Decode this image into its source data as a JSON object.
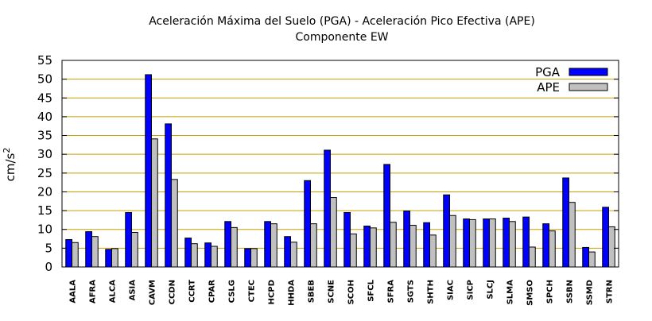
{
  "chart_data": {
    "type": "bar",
    "title": "Aceleración Máxima del Suelo (PGA) -  Aceleración Pico Efectiva (APE)",
    "subtitle": "Componente EW",
    "ylabel": "cm/s",
    "ylabel_superscript": "2",
    "xlabel": "",
    "ylim": [
      0,
      55
    ],
    "yticks": [
      0,
      5,
      10,
      15,
      20,
      25,
      30,
      35,
      40,
      45,
      50,
      55
    ],
    "grid": true,
    "legend_position": "top-right",
    "categories": [
      "AALA",
      "AFRA",
      "ALCA",
      "ASIA",
      "CAVM",
      "CCDN",
      "CCRT",
      "CPAR",
      "CSLG",
      "CTEC",
      "HCPD",
      "HHDA",
      "SBEB",
      "SCNE",
      "SCOH",
      "SFCL",
      "SFRA",
      "SGTS",
      "SHTH",
      "SIAC",
      "SICP",
      "SLCJ",
      "SLMA",
      "SMSO",
      "SPCH",
      "SSBN",
      "SSMD",
      "STRN"
    ],
    "series": [
      {
        "name": "PGA",
        "color": "#0000ff",
        "values": [
          7.3,
          9.4,
          4.7,
          14.5,
          51.2,
          38.1,
          7.7,
          6.4,
          12.1,
          4.9,
          12.1,
          8.1,
          23.0,
          31.1,
          14.5,
          10.9,
          27.3,
          14.9,
          11.8,
          19.2,
          12.8,
          12.8,
          13.0,
          13.3,
          11.5,
          23.7,
          5.2,
          15.9
        ]
      },
      {
        "name": "APE",
        "color": "#c0c0c0",
        "values": [
          6.5,
          8.1,
          4.9,
          9.2,
          34.1,
          23.3,
          6.2,
          5.5,
          10.5,
          4.9,
          11.5,
          6.6,
          11.5,
          18.5,
          8.8,
          10.4,
          11.9,
          11.1,
          8.5,
          13.7,
          12.6,
          12.8,
          12.1,
          5.3,
          9.6,
          17.2,
          4.0,
          10.7
        ]
      }
    ]
  }
}
